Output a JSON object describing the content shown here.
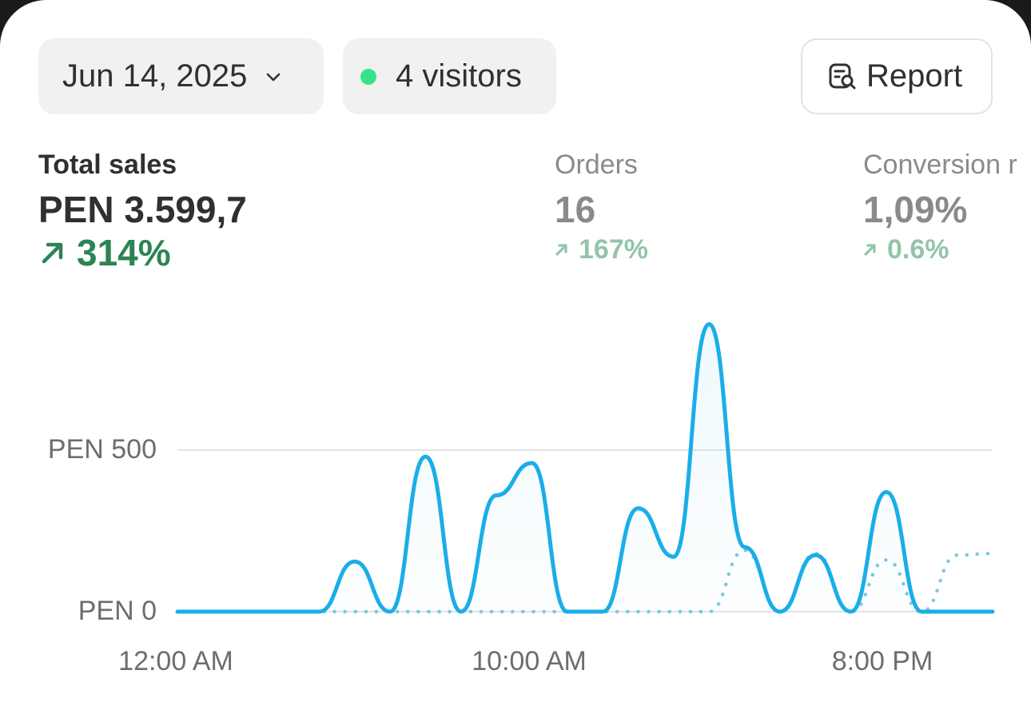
{
  "header": {
    "date_label": "Jun 14, 2025",
    "visitors_label": "4 visitors",
    "report_label": "Report"
  },
  "metrics": [
    {
      "label": "Total sales",
      "value": "PEN 3.599,7",
      "change": "314%"
    },
    {
      "label": "Orders",
      "value": "16",
      "change": "167%"
    },
    {
      "label": "Conversion r",
      "value": "1,09%",
      "change": "0.6%"
    }
  ],
  "icons": {
    "date_chevron": "chevron-down-icon",
    "visitors_dot": "live-dot-icon",
    "report": "report-search-icon",
    "change_arrow": "arrow-up-right-icon"
  },
  "colors": {
    "series_primary": "#1aaee8",
    "series_comparison": "#7cc8e0",
    "positive": "#2c8454",
    "positive_muted": "#94c4a8",
    "live_dot": "#36e38c"
  },
  "chart_data": {
    "type": "line",
    "x_tick_labels": [
      "12:00 AM",
      "10:00 AM",
      "8:00 PM"
    ],
    "y_tick_labels": [
      "PEN 0",
      "PEN 500"
    ],
    "ylim": [
      0,
      900
    ],
    "grid": true,
    "series": [
      {
        "style": "solid",
        "x": [
          0,
          1,
          2,
          3,
          4,
          5,
          6,
          7,
          8,
          9,
          10,
          11,
          12,
          13,
          14,
          15,
          16,
          17,
          18,
          19,
          20,
          21,
          22,
          23
        ],
        "values": [
          0,
          0,
          0,
          0,
          0,
          155,
          0,
          480,
          0,
          360,
          460,
          0,
          0,
          320,
          170,
          890,
          200,
          0,
          175,
          0,
          370,
          0,
          0,
          0
        ]
      },
      {
        "style": "dotted",
        "x": [
          0,
          1,
          2,
          3,
          4,
          5,
          6,
          7,
          8,
          9,
          10,
          11,
          12,
          13,
          14,
          15,
          16,
          17,
          18,
          19,
          20,
          21,
          22,
          23
        ],
        "values": [
          0,
          0,
          0,
          0,
          0,
          0,
          0,
          0,
          0,
          0,
          0,
          0,
          0,
          0,
          0,
          0,
          190,
          0,
          180,
          0,
          160,
          0,
          175,
          180
        ]
      }
    ]
  }
}
